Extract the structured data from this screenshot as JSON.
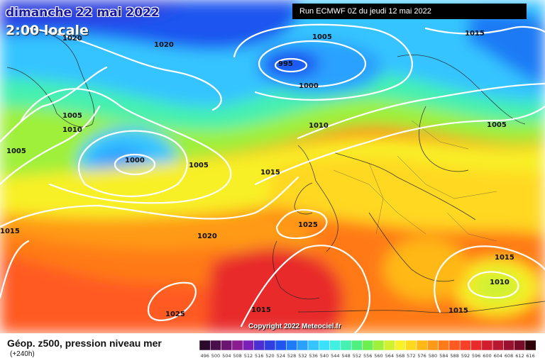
{
  "header": {
    "date": "dimanche 22 mai 2022",
    "local_time": "2:00 locale",
    "run": "Run ECMWF 0Z du jeudi 12 mai 2022"
  },
  "copyright": "Copyright 2022 Meteociel.fr",
  "footer": {
    "title": "Géop. z500, pression niveau mer",
    "lead": "(+240h)"
  },
  "legend": {
    "labels": [
      "496",
      "500",
      "504",
      "508",
      "512",
      "516",
      "520",
      "524",
      "528",
      "532",
      "536",
      "540",
      "544",
      "548",
      "552",
      "556",
      "560",
      "564",
      "568",
      "572",
      "576",
      "580",
      "584",
      "588",
      "592",
      "596",
      "600",
      "604",
      "608",
      "612",
      "616"
    ],
    "colors": [
      "#2a0a2a",
      "#4a0f4a",
      "#6a1570",
      "#8a1c90",
      "#7a20b8",
      "#4b2fd0",
      "#2f3fe0",
      "#1f55f0",
      "#1f7af5",
      "#2aa0ff",
      "#34c4ff",
      "#3be0ff",
      "#40f0e0",
      "#45f0b0",
      "#50f080",
      "#6cf050",
      "#9ef03a",
      "#d0f030",
      "#f8f028",
      "#ffd820",
      "#ffb818",
      "#ff9a18",
      "#ff7a18",
      "#ff5a20",
      "#f84028",
      "#e82a2a",
      "#d01e2e",
      "#b81830",
      "#981230",
      "#780c28",
      "#300008"
    ]
  },
  "pressure_labels": [
    {
      "text": "1020"
    },
    {
      "text": "1020"
    },
    {
      "text": "1005"
    },
    {
      "text": "995"
    },
    {
      "text": "1000"
    },
    {
      "text": "1015"
    },
    {
      "text": "1005"
    },
    {
      "text": "1010"
    },
    {
      "text": "1010"
    },
    {
      "text": "1005"
    },
    {
      "text": "1005"
    },
    {
      "text": "1000"
    },
    {
      "text": "1005"
    },
    {
      "text": "1015"
    },
    {
      "text": "1020"
    },
    {
      "text": "1025"
    },
    {
      "text": "1015"
    },
    {
      "text": "1025"
    },
    {
      "text": "1015"
    },
    {
      "text": "1015"
    },
    {
      "text": "1010"
    },
    {
      "text": "1015"
    }
  ]
}
